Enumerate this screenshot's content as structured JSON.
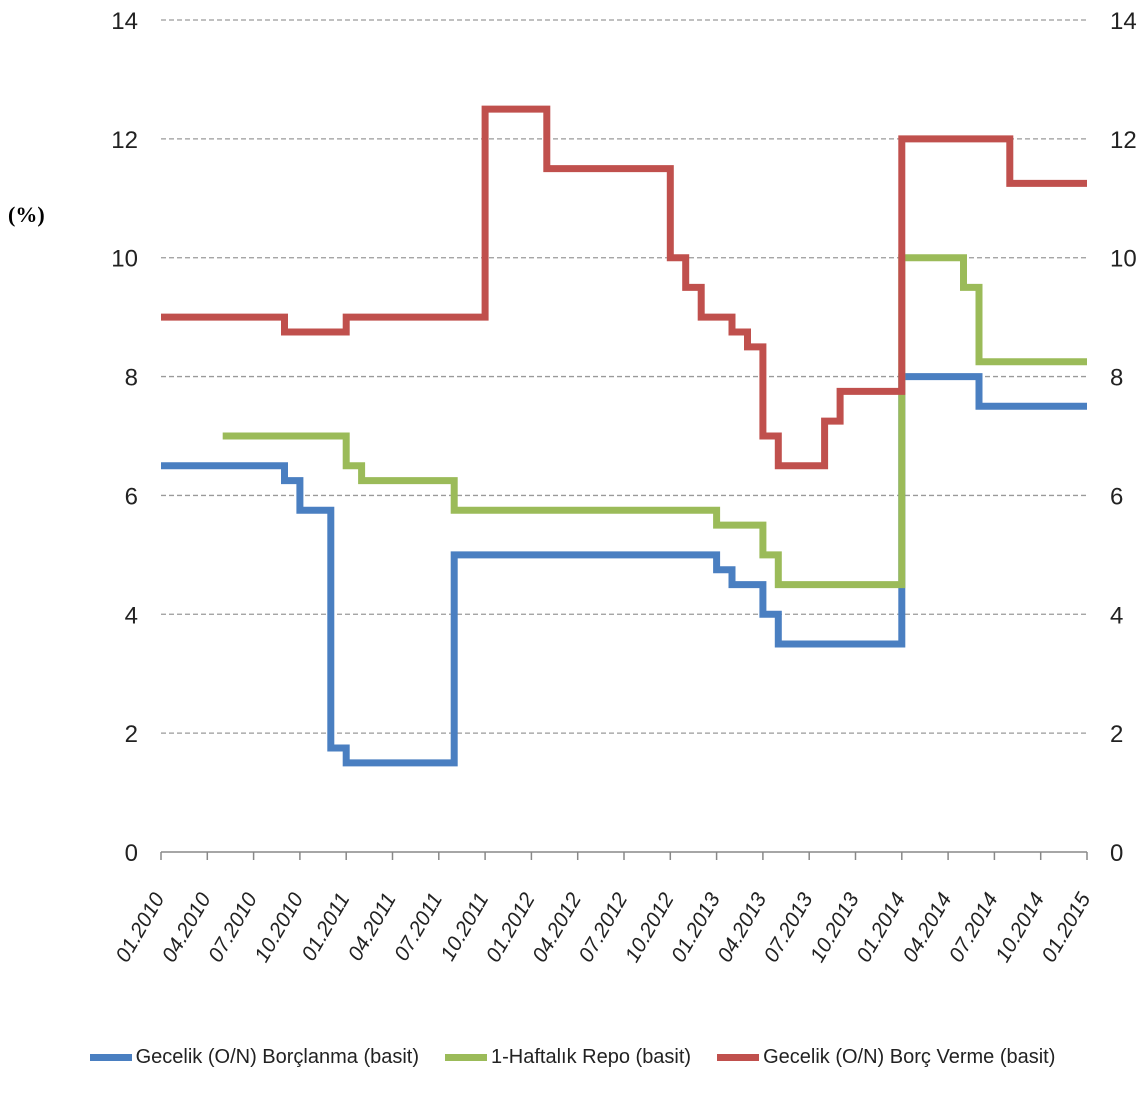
{
  "unit_label": "(%)",
  "chart_data": {
    "type": "line",
    "step": true,
    "ylim": [
      0,
      14
    ],
    "y_ticks": [
      "0",
      "2",
      "4",
      "6",
      "8",
      "10",
      "12",
      "14"
    ],
    "dual_y_axis": true,
    "grid": "horizontal dashed",
    "legend_position": "bottom",
    "x_tick_labels": [
      "01.2010",
      "04.2010",
      "07.2010",
      "10.2010",
      "01.2011",
      "04.2011",
      "07.2011",
      "10.2011",
      "01.2012",
      "04.2012",
      "07.2012",
      "10.2012",
      "01.2013",
      "04.2013",
      "07.2013",
      "10.2013",
      "01.2014",
      "04.2014",
      "07.2014",
      "10.2014",
      "01.2015"
    ],
    "x_range": [
      "2010-01",
      "2015-01"
    ],
    "series": [
      {
        "name": "Gecelik (O/N) Borçlanma (basit)",
        "color": "#4a7fc1",
        "points": [
          [
            "2010-01",
            6.5
          ],
          [
            "2010-09",
            6.25
          ],
          [
            "2010-10",
            5.75
          ],
          [
            "2010-12",
            1.75
          ],
          [
            "2011-01",
            1.5
          ],
          [
            "2011-08",
            5.0
          ],
          [
            "2012-12",
            5.0
          ],
          [
            "2013-01",
            4.75
          ],
          [
            "2013-02",
            4.5
          ],
          [
            "2013-04",
            4.0
          ],
          [
            "2013-05",
            3.5
          ],
          [
            "2014-01",
            3.5
          ],
          [
            "2014-01",
            8.0
          ],
          [
            "2014-06",
            8.0
          ],
          [
            "2014-06",
            7.5
          ],
          [
            "2015-01",
            7.5
          ]
        ]
      },
      {
        "name": "1-Haftalık Repo (basit)",
        "color": "#9bbb59",
        "points": [
          [
            "2010-05",
            7.0
          ],
          [
            "2010-12",
            7.0
          ],
          [
            "2011-01",
            6.5
          ],
          [
            "2011-02",
            6.25
          ],
          [
            "2011-08",
            5.75
          ],
          [
            "2012-12",
            5.75
          ],
          [
            "2013-01",
            5.5
          ],
          [
            "2013-04",
            5.0
          ],
          [
            "2013-05",
            4.5
          ],
          [
            "2014-01",
            4.5
          ],
          [
            "2014-01",
            10.0
          ],
          [
            "2014-04",
            10.0
          ],
          [
            "2014-05",
            9.5
          ],
          [
            "2014-06",
            8.75
          ],
          [
            "2014-06",
            8.25
          ],
          [
            "2015-01",
            8.25
          ]
        ]
      },
      {
        "name": "Gecelik (O/N) Borç Verme (basit)",
        "color": "#c0504d",
        "points": [
          [
            "2010-01",
            9.0
          ],
          [
            "2010-09",
            8.75
          ],
          [
            "2010-12",
            8.75
          ],
          [
            "2011-01",
            9.0
          ],
          [
            "2011-10",
            9.0
          ],
          [
            "2011-10",
            12.5
          ],
          [
            "2012-02",
            12.5
          ],
          [
            "2012-02",
            11.5
          ],
          [
            "2012-10",
            11.5
          ],
          [
            "2012-10",
            10.0
          ],
          [
            "2012-11",
            9.5
          ],
          [
            "2012-12",
            9.0
          ],
          [
            "2013-02",
            8.75
          ],
          [
            "2013-03",
            8.5
          ],
          [
            "2013-04",
            7.5
          ],
          [
            "2013-04",
            7.0
          ],
          [
            "2013-05",
            6.5
          ],
          [
            "2013-07",
            6.5
          ],
          [
            "2013-08",
            7.25
          ],
          [
            "2013-09",
            7.75
          ],
          [
            "2014-01",
            7.75
          ],
          [
            "2014-01",
            12.0
          ],
          [
            "2014-07",
            12.0
          ],
          [
            "2014-08",
            11.25
          ],
          [
            "2015-01",
            11.25
          ]
        ]
      }
    ]
  }
}
